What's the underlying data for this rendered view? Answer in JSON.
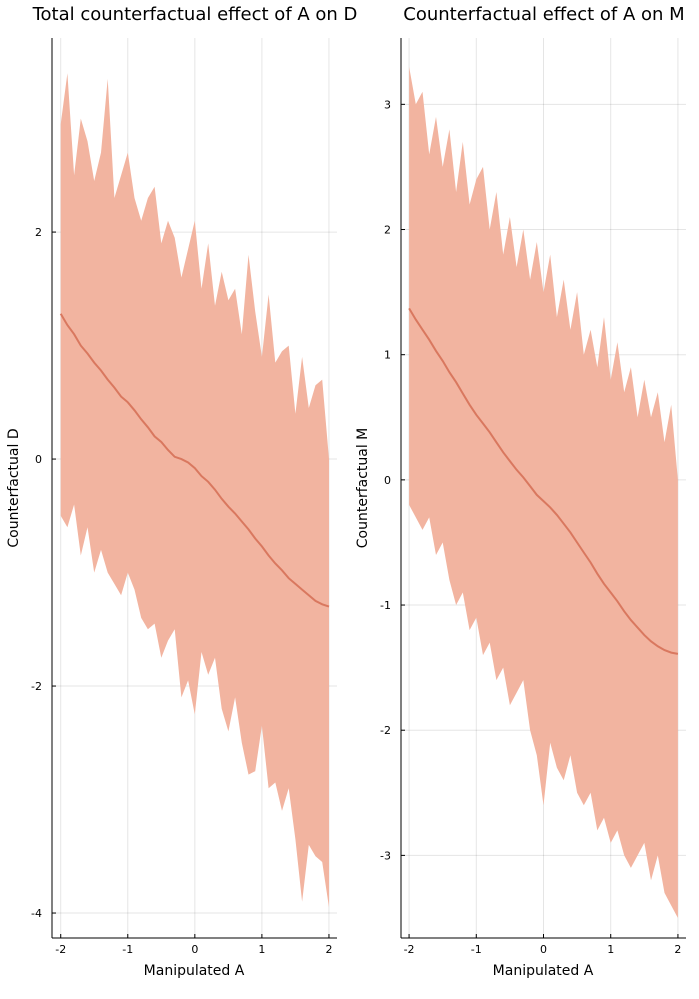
{
  "chart_data": [
    {
      "type": "area",
      "title": "Total counterfactual effect of A on D",
      "xlabel": "Manipulated A",
      "ylabel": "Counterfactual D",
      "xlim": [
        -2.13,
        2.12
      ],
      "ylim": [
        -4.22,
        3.71
      ],
      "xticks": [
        -2,
        -1,
        0,
        1,
        2
      ],
      "yticks": [
        -4,
        -2,
        0,
        2
      ],
      "grid": true,
      "legend": "none",
      "band_color": "#f2b4a0",
      "line_color": "#d9785f",
      "series": [
        {
          "x": [
            -2.0,
            -1.9,
            -1.8,
            -1.7,
            -1.6,
            -1.5,
            -1.4,
            -1.3,
            -1.2,
            -1.1,
            -1.0,
            -0.9,
            -0.8,
            -0.7,
            -0.6,
            -0.5,
            -0.4,
            -0.3,
            -0.2,
            -0.1,
            0.0,
            0.1,
            0.2,
            0.3,
            0.4,
            0.5,
            0.6,
            0.7,
            0.8,
            0.9,
            1.0,
            1.1,
            1.2,
            1.3,
            1.4,
            1.5,
            1.6,
            1.7,
            1.8,
            1.9,
            2.0
          ],
          "mean": [
            1.28,
            1.18,
            1.1,
            1.0,
            0.93,
            0.85,
            0.78,
            0.7,
            0.63,
            0.55,
            0.5,
            0.43,
            0.35,
            0.28,
            0.2,
            0.15,
            0.08,
            0.02,
            0.0,
            -0.03,
            -0.08,
            -0.15,
            -0.2,
            -0.27,
            -0.35,
            -0.42,
            -0.48,
            -0.55,
            -0.62,
            -0.7,
            -0.77,
            -0.85,
            -0.92,
            -0.98,
            -1.05,
            -1.1,
            -1.15,
            -1.2,
            -1.25,
            -1.28,
            -1.3
          ],
          "upper": [
            2.95,
            3.4,
            2.5,
            3.0,
            2.8,
            2.45,
            2.7,
            3.35,
            2.3,
            2.5,
            2.7,
            2.3,
            2.1,
            2.3,
            2.4,
            1.9,
            2.1,
            1.95,
            1.6,
            1.85,
            2.1,
            1.5,
            1.9,
            1.35,
            1.65,
            1.4,
            1.5,
            1.1,
            1.8,
            1.3,
            0.9,
            1.45,
            0.85,
            0.95,
            1.0,
            0.4,
            0.9,
            0.45,
            0.65,
            0.7,
            0.0
          ],
          "lower": [
            -0.5,
            -0.6,
            -0.4,
            -0.85,
            -0.6,
            -1.0,
            -0.8,
            -1.0,
            -1.1,
            -1.2,
            -1.0,
            -1.15,
            -1.4,
            -1.5,
            -1.45,
            -1.75,
            -1.6,
            -1.5,
            -2.1,
            -1.95,
            -2.25,
            -1.7,
            -1.9,
            -1.75,
            -2.2,
            -2.4,
            -2.1,
            -2.5,
            -2.78,
            -2.75,
            -2.35,
            -2.9,
            -2.85,
            -3.1,
            -2.9,
            -3.35,
            -3.9,
            -3.4,
            -3.5,
            -3.55,
            -3.95
          ]
        }
      ]
    },
    {
      "type": "area",
      "title": "Counterfactual effect of A on M",
      "xlabel": "Manipulated A",
      "ylabel": "Counterfactual M",
      "xlim": [
        -2.12,
        2.12
      ],
      "ylim": [
        -3.66,
        3.53
      ],
      "xticks": [
        -2,
        -1,
        0,
        1,
        2
      ],
      "yticks": [
        -3,
        -2,
        -1,
        0,
        1,
        2,
        3
      ],
      "grid": true,
      "legend": "none",
      "band_color": "#f2b4a0",
      "line_color": "#d9785f",
      "series": [
        {
          "x": [
            -2.0,
            -1.9,
            -1.8,
            -1.7,
            -1.6,
            -1.5,
            -1.4,
            -1.3,
            -1.2,
            -1.1,
            -1.0,
            -0.9,
            -0.8,
            -0.7,
            -0.6,
            -0.5,
            -0.4,
            -0.3,
            -0.2,
            -0.1,
            0.0,
            0.1,
            0.2,
            0.3,
            0.4,
            0.5,
            0.6,
            0.7,
            0.8,
            0.9,
            1.0,
            1.1,
            1.2,
            1.3,
            1.4,
            1.5,
            1.6,
            1.7,
            1.8,
            1.9,
            2.0
          ],
          "mean": [
            1.37,
            1.28,
            1.2,
            1.12,
            1.03,
            0.95,
            0.86,
            0.78,
            0.69,
            0.6,
            0.52,
            0.45,
            0.38,
            0.3,
            0.22,
            0.15,
            0.08,
            0.02,
            -0.05,
            -0.12,
            -0.17,
            -0.22,
            -0.28,
            -0.35,
            -0.42,
            -0.5,
            -0.58,
            -0.66,
            -0.75,
            -0.83,
            -0.9,
            -0.97,
            -1.05,
            -1.12,
            -1.18,
            -1.24,
            -1.29,
            -1.33,
            -1.36,
            -1.38,
            -1.39
          ],
          "upper": [
            3.3,
            3.0,
            3.1,
            2.6,
            2.9,
            2.5,
            2.8,
            2.3,
            2.7,
            2.2,
            2.4,
            2.5,
            2.0,
            2.3,
            1.8,
            2.1,
            1.7,
            2.0,
            1.6,
            1.9,
            1.5,
            1.8,
            1.3,
            1.6,
            1.2,
            1.5,
            1.0,
            1.2,
            0.9,
            1.3,
            0.8,
            1.1,
            0.7,
            0.9,
            0.5,
            0.8,
            0.5,
            0.7,
            0.3,
            0.6,
            0.0
          ],
          "lower": [
            -0.2,
            -0.3,
            -0.4,
            -0.3,
            -0.6,
            -0.5,
            -0.8,
            -1.0,
            -0.9,
            -1.2,
            -1.1,
            -1.4,
            -1.3,
            -1.6,
            -1.5,
            -1.8,
            -1.7,
            -1.6,
            -2.0,
            -2.2,
            -2.6,
            -2.1,
            -2.3,
            -2.4,
            -2.2,
            -2.5,
            -2.6,
            -2.5,
            -2.8,
            -2.7,
            -2.9,
            -2.8,
            -3.0,
            -3.1,
            -3.0,
            -2.9,
            -3.2,
            -3.0,
            -3.3,
            -3.4,
            -3.5
          ]
        }
      ]
    }
  ]
}
